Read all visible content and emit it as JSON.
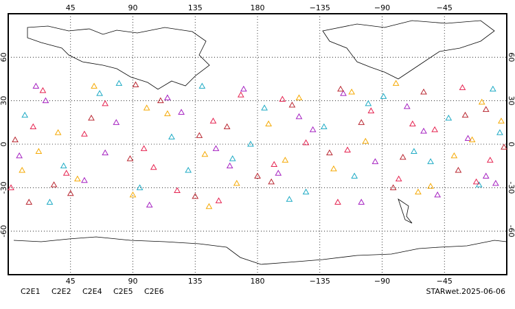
{
  "chart_data": {
    "type": "scatter",
    "xlim": [
      0,
      360
    ],
    "ylim": [
      -90,
      90
    ],
    "xticks": [
      45,
      90,
      135,
      180,
      {
        "value": 225,
        "label": "−135"
      },
      {
        "value": 270,
        "label": "−90"
      },
      {
        "value": 315,
        "label": "−45"
      }
    ],
    "yticks": [
      -60,
      -30,
      0,
      30,
      60
    ],
    "grid": true,
    "series": [
      {
        "name": "C2E1",
        "color": "#1aa9c4",
        "x": [
          12,
          40,
          66,
          95,
          118,
          140,
          162,
          185,
          203,
          228,
          250,
          271,
          293,
          318,
          340,
          355,
          30,
          80,
          130,
          175,
          215,
          260,
          305,
          350
        ],
        "values": [
          20,
          -15,
          35,
          -30,
          5,
          40,
          -10,
          25,
          -38,
          12,
          -22,
          33,
          -5,
          18,
          -28,
          8,
          -40,
          42,
          -18,
          0,
          -33,
          28,
          -12,
          38
        ]
      },
      {
        "name": "C2E2",
        "color": "#a41fc0",
        "x": [
          8,
          27,
          55,
          78,
          102,
          125,
          150,
          170,
          195,
          220,
          242,
          265,
          288,
          310,
          332,
          352,
          20,
          70,
          115,
          160,
          210,
          255,
          300,
          345
        ],
        "values": [
          -8,
          30,
          -25,
          15,
          -42,
          22,
          -3,
          38,
          -20,
          10,
          35,
          -12,
          26,
          -35,
          4,
          -27,
          40,
          -6,
          32,
          -15,
          19,
          -40,
          9,
          -22
        ]
      },
      {
        "name": "C2E4",
        "color": "#b8242e",
        "x": [
          5,
          33,
          60,
          88,
          110,
          135,
          158,
          180,
          205,
          232,
          255,
          278,
          300,
          325,
          345,
          358,
          45,
          92,
          138,
          190,
          240,
          285,
          330,
          15
        ],
        "values": [
          3,
          -28,
          18,
          -10,
          30,
          -36,
          12,
          -22,
          27,
          -6,
          15,
          -30,
          36,
          -18,
          24,
          -2,
          -34,
          41,
          6,
          -26,
          38,
          -9,
          20,
          -40
        ]
      },
      {
        "name": "C2E5",
        "color": "#e5204e",
        "x": [
          18,
          42,
          70,
          98,
          122,
          148,
          168,
          192,
          215,
          238,
          262,
          282,
          308,
          328,
          348,
          2,
          55,
          105,
          152,
          198,
          245,
          292,
          338,
          25
        ],
        "values": [
          12,
          -20,
          28,
          -3,
          -32,
          16,
          34,
          -14,
          1,
          -40,
          23,
          -24,
          10,
          39,
          -11,
          -30,
          7,
          -16,
          -39,
          31,
          -4,
          14,
          -26,
          37
        ]
      },
      {
        "name": "C2E6",
        "color": "#f5a800",
        "x": [
          10,
          36,
          62,
          90,
          115,
          142,
          165,
          188,
          210,
          235,
          258,
          280,
          305,
          322,
          342,
          356,
          50,
          100,
          145,
          200,
          248,
          296,
          335,
          22
        ],
        "values": [
          -18,
          8,
          40,
          -35,
          21,
          -7,
          -27,
          14,
          32,
          -17,
          2,
          42,
          -29,
          -8,
          29,
          16,
          -24,
          25,
          -43,
          -11,
          36,
          -33,
          3,
          -5
        ]
      }
    ],
    "footer_label": "STARwet.2025-06-06"
  }
}
